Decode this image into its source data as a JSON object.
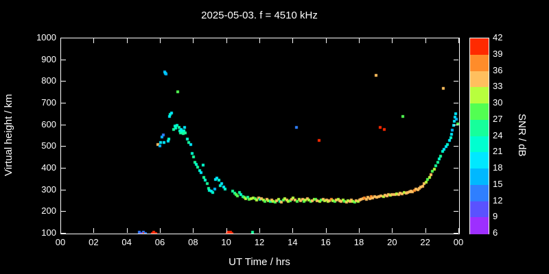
{
  "chart": {
    "title": "2025-05-03. f = 4510 kHz",
    "xlabel": "UT Time / hrs",
    "ylabel": "Virtual height / km",
    "x_ticks": [
      "00",
      "02",
      "04",
      "06",
      "08",
      "10",
      "12",
      "14",
      "16",
      "18",
      "20",
      "22",
      "00"
    ],
    "y_ticks": [
      "100",
      "200",
      "300",
      "400",
      "500",
      "600",
      "700",
      "800",
      "900",
      "1000"
    ],
    "colorbar": {
      "label": "SNR / dB",
      "ticks_top_to_bottom": [
        "42",
        "39",
        "36",
        "33",
        "30",
        "27",
        "24",
        "21",
        "18",
        "15",
        "12",
        "9",
        "6"
      ],
      "segment_colors_bottom_to_top": [
        "#9d2fff",
        "#5a52ff",
        "#2f7fff",
        "#00b8ff",
        "#00e8ff",
        "#00ffd0",
        "#16ff9b",
        "#52ff52",
        "#b8ff3d",
        "#ffbf5e",
        "#ff8c2a",
        "#ff2a00"
      ]
    }
  },
  "chart_data": {
    "type": "scatter",
    "title": "2025-05-03. f = 4510 kHz",
    "xlabel": "UT Time / hrs",
    "ylabel": "Virtual height / km",
    "color_label": "SNR / dB",
    "xlim": [
      0,
      24
    ],
    "ylim": [
      100,
      1000
    ],
    "clim": [
      6,
      42
    ],
    "grid": false,
    "points_format": [
      "ut_hours",
      "virtual_height_km",
      "snr_db"
    ],
    "points": [
      [
        4.7,
        105,
        12
      ],
      [
        4.8,
        100,
        9
      ],
      [
        4.95,
        105,
        12
      ],
      [
        5.0,
        100,
        40
      ],
      [
        5.1,
        100,
        12
      ],
      [
        5.5,
        100,
        41
      ],
      [
        5.6,
        105,
        40
      ],
      [
        5.65,
        100,
        39
      ],
      [
        5.7,
        100,
        41
      ],
      [
        5.85,
        510,
        34
      ],
      [
        5.95,
        505,
        15
      ],
      [
        6.0,
        520,
        18
      ],
      [
        6.1,
        545,
        16
      ],
      [
        6.15,
        555,
        14
      ],
      [
        6.2,
        520,
        19
      ],
      [
        6.25,
        845,
        16
      ],
      [
        6.3,
        840,
        18
      ],
      [
        6.35,
        835,
        15
      ],
      [
        6.45,
        525,
        20
      ],
      [
        6.5,
        535,
        22
      ],
      [
        6.55,
        640,
        18
      ],
      [
        6.6,
        650,
        23
      ],
      [
        6.65,
        655,
        20
      ],
      [
        6.8,
        580,
        26
      ],
      [
        6.85,
        595,
        23
      ],
      [
        6.9,
        585,
        21
      ],
      [
        7.0,
        600,
        22
      ],
      [
        7.05,
        755,
        29
      ],
      [
        7.1,
        590,
        24
      ],
      [
        7.15,
        575,
        22
      ],
      [
        7.2,
        565,
        26
      ],
      [
        7.25,
        580,
        20
      ],
      [
        7.3,
        570,
        23
      ],
      [
        7.35,
        560,
        25
      ],
      [
        7.4,
        575,
        21
      ],
      [
        7.45,
        590,
        19
      ],
      [
        7.5,
        565,
        24
      ],
      [
        7.6,
        535,
        21
      ],
      [
        7.7,
        520,
        24
      ],
      [
        7.8,
        510,
        19
      ],
      [
        7.9,
        470,
        22
      ],
      [
        8.0,
        455,
        24
      ],
      [
        8.05,
        430,
        26
      ],
      [
        8.15,
        420,
        22
      ],
      [
        8.25,
        405,
        24
      ],
      [
        8.35,
        390,
        21
      ],
      [
        8.45,
        380,
        19
      ],
      [
        8.55,
        415,
        23
      ],
      [
        8.6,
        360,
        24
      ],
      [
        8.7,
        345,
        21
      ],
      [
        8.8,
        330,
        26
      ],
      [
        8.9,
        310,
        24
      ],
      [
        8.95,
        300,
        21
      ],
      [
        9.05,
        295,
        18
      ],
      [
        9.15,
        290,
        21
      ],
      [
        9.25,
        305,
        15
      ],
      [
        9.3,
        350,
        18
      ],
      [
        9.4,
        355,
        20
      ],
      [
        9.5,
        345,
        22
      ],
      [
        9.6,
        320,
        21
      ],
      [
        9.7,
        330,
        18
      ],
      [
        9.8,
        315,
        20
      ],
      [
        9.9,
        305,
        22
      ],
      [
        10.0,
        100,
        42
      ],
      [
        10.05,
        105,
        41
      ],
      [
        10.1,
        100,
        42
      ],
      [
        10.15,
        100,
        40
      ],
      [
        10.2,
        105,
        42
      ],
      [
        10.3,
        100,
        41
      ],
      [
        10.35,
        295,
        26
      ],
      [
        10.45,
        285,
        24
      ],
      [
        10.55,
        280,
        29
      ],
      [
        10.65,
        275,
        27
      ],
      [
        10.75,
        290,
        24
      ],
      [
        10.85,
        280,
        22
      ],
      [
        10.95,
        270,
        26
      ],
      [
        11.05,
        268,
        29
      ],
      [
        11.15,
        262,
        31
      ],
      [
        11.25,
        268,
        25
      ],
      [
        11.35,
        258,
        27
      ],
      [
        11.45,
        262,
        30
      ],
      [
        11.55,
        105,
        26
      ],
      [
        11.6,
        265,
        32
      ],
      [
        11.7,
        260,
        27
      ],
      [
        11.8,
        255,
        30
      ],
      [
        11.9,
        264,
        33
      ],
      [
        12.0,
        258,
        25
      ],
      [
        12.1,
        262,
        35
      ],
      [
        12.2,
        255,
        30
      ],
      [
        12.3,
        250,
        27
      ],
      [
        12.4,
        257,
        33
      ],
      [
        12.5,
        251,
        30
      ],
      [
        12.6,
        247,
        25
      ],
      [
        12.7,
        254,
        35
      ],
      [
        12.8,
        249,
        30
      ],
      [
        12.9,
        245,
        27
      ],
      [
        13.0,
        252,
        33
      ],
      [
        13.1,
        257,
        30
      ],
      [
        13.2,
        250,
        25
      ],
      [
        13.3,
        245,
        33
      ],
      [
        13.4,
        254,
        27
      ],
      [
        13.5,
        261,
        30
      ],
      [
        13.6,
        255,
        33
      ],
      [
        13.7,
        248,
        30
      ],
      [
        13.8,
        252,
        27
      ],
      [
        13.9,
        257,
        35
      ],
      [
        14.0,
        264,
        30
      ],
      [
        14.1,
        255,
        33
      ],
      [
        14.2,
        590,
        12
      ],
      [
        14.25,
        248,
        27
      ],
      [
        14.35,
        259,
        30
      ],
      [
        14.45,
        251,
        35
      ],
      [
        14.55,
        257,
        33
      ],
      [
        14.65,
        249,
        27
      ],
      [
        14.75,
        254,
        30
      ],
      [
        14.85,
        261,
        33
      ],
      [
        14.95,
        254,
        30
      ],
      [
        15.05,
        247,
        27
      ],
      [
        15.15,
        251,
        33
      ],
      [
        15.25,
        257,
        30
      ],
      [
        15.35,
        259,
        27
      ],
      [
        15.45,
        253,
        33
      ],
      [
        15.55,
        530,
        39
      ],
      [
        15.6,
        249,
        30
      ],
      [
        15.7,
        254,
        27
      ],
      [
        15.8,
        259,
        33
      ],
      [
        15.9,
        251,
        30
      ],
      [
        16.0,
        255,
        33
      ],
      [
        16.1,
        249,
        30
      ],
      [
        16.2,
        253,
        34
      ],
      [
        16.3,
        257,
        36
      ],
      [
        16.4,
        251,
        30
      ],
      [
        16.5,
        247,
        27
      ],
      [
        16.6,
        254,
        33
      ],
      [
        16.7,
        259,
        30
      ],
      [
        16.8,
        251,
        35
      ],
      [
        16.9,
        247,
        33
      ],
      [
        17.0,
        254,
        30
      ],
      [
        17.1,
        249,
        27
      ],
      [
        17.2,
        244,
        33
      ],
      [
        17.3,
        251,
        30
      ],
      [
        17.4,
        247,
        35
      ],
      [
        17.5,
        254,
        33
      ],
      [
        17.6,
        249,
        30
      ],
      [
        17.7,
        244,
        27
      ],
      [
        17.8,
        251,
        33
      ],
      [
        17.9,
        247,
        30
      ],
      [
        18.0,
        254,
        33
      ],
      [
        18.1,
        257,
        35
      ],
      [
        18.2,
        261,
        33
      ],
      [
        18.3,
        264,
        36
      ],
      [
        18.4,
        259,
        33
      ],
      [
        18.5,
        267,
        35
      ],
      [
        18.6,
        261,
        33
      ],
      [
        18.7,
        269,
        36
      ],
      [
        18.8,
        264,
        33
      ],
      [
        18.9,
        271,
        35
      ],
      [
        19.0,
        830,
        33
      ],
      [
        19.05,
        267,
        33
      ],
      [
        19.15,
        269,
        35
      ],
      [
        19.25,
        590,
        39
      ],
      [
        19.3,
        274,
        33
      ],
      [
        19.45,
        271,
        30
      ],
      [
        19.5,
        580,
        39
      ],
      [
        19.55,
        277,
        33
      ],
      [
        19.65,
        274,
        35
      ],
      [
        19.75,
        279,
        33
      ],
      [
        19.85,
        277,
        30
      ],
      [
        19.95,
        281,
        33
      ],
      [
        20.05,
        279,
        35
      ],
      [
        20.15,
        281,
        33
      ],
      [
        20.25,
        284,
        30
      ],
      [
        20.35,
        281,
        33
      ],
      [
        20.45,
        287,
        35
      ],
      [
        20.55,
        284,
        33
      ],
      [
        20.6,
        640,
        27
      ],
      [
        20.7,
        289,
        30
      ],
      [
        20.8,
        287,
        33
      ],
      [
        20.9,
        291,
        35
      ],
      [
        21.0,
        294,
        33
      ],
      [
        21.1,
        297,
        35
      ],
      [
        21.2,
        294,
        33
      ],
      [
        21.3,
        299,
        38
      ],
      [
        21.4,
        304,
        35
      ],
      [
        21.5,
        301,
        33
      ],
      [
        21.6,
        309,
        35
      ],
      [
        21.7,
        314,
        33
      ],
      [
        21.8,
        319,
        35
      ],
      [
        21.9,
        329,
        33
      ],
      [
        22.0,
        338,
        30
      ],
      [
        22.1,
        348,
        27
      ],
      [
        22.2,
        358,
        30
      ],
      [
        22.3,
        373,
        33
      ],
      [
        22.4,
        388,
        27
      ],
      [
        22.5,
        398,
        30
      ],
      [
        22.6,
        413,
        24
      ],
      [
        22.7,
        428,
        26
      ],
      [
        22.8,
        443,
        21
      ],
      [
        22.9,
        458,
        24
      ],
      [
        23.0,
        478,
        21
      ],
      [
        23.05,
        770,
        33
      ],
      [
        23.1,
        490,
        19
      ],
      [
        23.2,
        500,
        18
      ],
      [
        23.3,
        512,
        21
      ],
      [
        23.4,
        528,
        18
      ],
      [
        23.5,
        543,
        21
      ],
      [
        23.55,
        558,
        18
      ],
      [
        23.6,
        578,
        15
      ],
      [
        23.65,
        600,
        20
      ],
      [
        23.7,
        618,
        18
      ],
      [
        23.75,
        638,
        20
      ],
      [
        23.8,
        652,
        18
      ],
      [
        23.85,
        628,
        15
      ],
      [
        23.9,
        605,
        27
      ]
    ]
  }
}
